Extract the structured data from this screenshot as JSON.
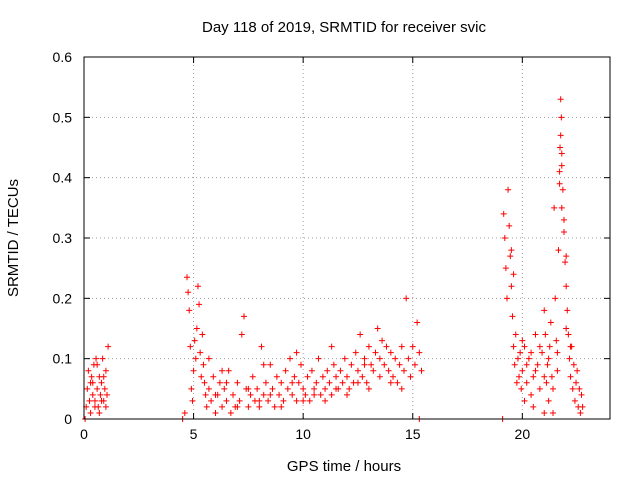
{
  "chart_data": {
    "type": "scatter",
    "title": "Day 118 of 2019, SRMTID for receiver svic",
    "xlabel": "GPS time / hours",
    "ylabel": "SRMTID / TECUs",
    "xlim": [
      0,
      24
    ],
    "ylim": [
      0,
      0.6
    ],
    "x_ticks": [
      0,
      5,
      10,
      15,
      20
    ],
    "x_tick_labels": [
      "0",
      "5",
      "10",
      "15",
      "20"
    ],
    "y_ticks": [
      0,
      0.1,
      0.2,
      0.3,
      0.4,
      0.5,
      0.6
    ],
    "y_tick_labels": [
      "0",
      "0.1",
      "0.2",
      "0.3",
      "0.4",
      "0.5",
      "0.6"
    ],
    "grid": true,
    "marker": "+",
    "color": "#ff0000",
    "series": [
      {
        "name": "SRMTID",
        "points": [
          [
            0.05,
            0.0
          ],
          [
            0.1,
            0.02
          ],
          [
            0.15,
            0.05
          ],
          [
            0.2,
            0.08
          ],
          [
            0.25,
            0.03
          ],
          [
            0.3,
            0.06
          ],
          [
            0.35,
            0.07
          ],
          [
            0.4,
            0.04
          ],
          [
            0.45,
            0.09
          ],
          [
            0.5,
            0.03
          ],
          [
            0.55,
            0.1
          ],
          [
            0.6,
            0.05
          ],
          [
            0.65,
            0.02
          ],
          [
            0.7,
            0.07
          ],
          [
            0.75,
            0.04
          ],
          [
            0.8,
            0.06
          ],
          [
            0.85,
            0.1
          ],
          [
            0.9,
            0.03
          ],
          [
            0.95,
            0.05
          ],
          [
            1.0,
            0.08
          ],
          [
            1.05,
            0.04
          ],
          [
            1.1,
            0.12
          ],
          [
            0.5,
            0.02
          ],
          [
            0.6,
            0.09
          ],
          [
            0.7,
            0.01
          ],
          [
            0.8,
            0.03
          ],
          [
            0.9,
            0.07
          ],
          [
            1.0,
            0.02
          ],
          [
            0.3,
            0.01
          ],
          [
            0.4,
            0.06
          ],
          [
            4.5,
            0.0
          ],
          [
            4.6,
            0.01
          ],
          [
            4.7,
            0.235
          ],
          [
            4.75,
            0.21
          ],
          [
            4.8,
            0.18
          ],
          [
            4.85,
            0.12
          ],
          [
            4.9,
            0.05
          ],
          [
            4.95,
            0.03
          ],
          [
            5.0,
            0.08
          ],
          [
            5.05,
            0.13
          ],
          [
            5.1,
            0.1
          ],
          [
            5.15,
            0.15
          ],
          [
            5.2,
            0.22
          ],
          [
            5.25,
            0.19
          ],
          [
            5.3,
            0.11
          ],
          [
            5.35,
            0.07
          ],
          [
            5.4,
            0.14
          ],
          [
            5.45,
            0.09
          ],
          [
            5.5,
            0.06
          ],
          [
            5.55,
            0.04
          ],
          [
            5.6,
            0.02
          ],
          [
            5.7,
            0.05
          ],
          [
            5.8,
            0.03
          ],
          [
            5.9,
            0.07
          ],
          [
            6.0,
            0.01
          ],
          [
            6.1,
            0.04
          ],
          [
            6.2,
            0.06
          ],
          [
            6.3,
            0.02
          ],
          [
            6.4,
            0.05
          ],
          [
            6.5,
            0.03
          ],
          [
            6.6,
            0.08
          ],
          [
            6.7,
            0.01
          ],
          [
            6.8,
            0.04
          ],
          [
            6.9,
            0.02
          ],
          [
            7.0,
            0.06
          ],
          [
            7.1,
            0.03
          ],
          [
            7.2,
            0.14
          ],
          [
            7.3,
            0.17
          ],
          [
            7.4,
            0.05
          ],
          [
            7.5,
            0.02
          ],
          [
            7.6,
            0.04
          ],
          [
            7.7,
            0.07
          ],
          [
            7.8,
            0.03
          ],
          [
            7.9,
            0.05
          ],
          [
            8.0,
            0.02
          ],
          [
            8.1,
            0.12
          ],
          [
            8.2,
            0.04
          ],
          [
            8.3,
            0.06
          ],
          [
            8.4,
            0.03
          ],
          [
            8.5,
            0.09
          ],
          [
            8.6,
            0.05
          ],
          [
            8.7,
            0.02
          ],
          [
            8.8,
            0.07
          ],
          [
            8.9,
            0.04
          ],
          [
            9.0,
            0.06
          ],
          [
            9.1,
            0.03
          ],
          [
            9.2,
            0.08
          ],
          [
            9.3,
            0.05
          ],
          [
            9.4,
            0.1
          ],
          [
            9.5,
            0.04
          ],
          [
            9.6,
            0.07
          ],
          [
            9.7,
            0.03
          ],
          [
            9.8,
            0.06
          ],
          [
            9.9,
            0.09
          ],
          [
            10.0,
            0.05
          ],
          [
            10.1,
            0.04
          ],
          [
            10.2,
            0.07
          ],
          [
            10.3,
            0.03
          ],
          [
            10.4,
            0.08
          ],
          [
            10.5,
            0.05
          ],
          [
            10.6,
            0.06
          ],
          [
            10.7,
            0.1
          ],
          [
            10.8,
            0.04
          ],
          [
            10.9,
            0.07
          ],
          [
            11.0,
            0.05
          ],
          [
            11.1,
            0.08
          ],
          [
            11.2,
            0.06
          ],
          [
            11.3,
            0.04
          ],
          [
            11.4,
            0.09
          ],
          [
            11.5,
            0.07
          ],
          [
            11.6,
            0.05
          ],
          [
            11.7,
            0.08
          ],
          [
            11.8,
            0.06
          ],
          [
            11.9,
            0.1
          ],
          [
            12.0,
            0.07
          ],
          [
            12.1,
            0.05
          ],
          [
            12.2,
            0.09
          ],
          [
            12.3,
            0.06
          ],
          [
            12.4,
            0.11
          ],
          [
            12.5,
            0.08
          ],
          [
            12.6,
            0.14
          ],
          [
            12.7,
            0.07
          ],
          [
            12.8,
            0.1
          ],
          [
            12.9,
            0.06
          ],
          [
            13.0,
            0.12
          ],
          [
            13.1,
            0.09
          ],
          [
            13.2,
            0.08
          ],
          [
            13.3,
            0.11
          ],
          [
            13.4,
            0.15
          ],
          [
            13.5,
            0.1
          ],
          [
            13.6,
            0.13
          ],
          [
            13.7,
            0.09
          ],
          [
            13.8,
            0.12
          ],
          [
            13.9,
            0.08
          ],
          [
            14.0,
            0.11
          ],
          [
            14.1,
            0.07
          ],
          [
            14.2,
            0.1
          ],
          [
            14.3,
            0.06
          ],
          [
            14.4,
            0.09
          ],
          [
            14.5,
            0.12
          ],
          [
            14.6,
            0.08
          ],
          [
            14.7,
            0.2
          ],
          [
            14.8,
            0.1
          ],
          [
            14.9,
            0.07
          ],
          [
            15.0,
            0.12
          ],
          [
            15.1,
            0.09
          ],
          [
            15.2,
            0.16
          ],
          [
            15.3,
            0.11
          ],
          [
            15.4,
            0.08
          ],
          [
            15.3,
            0.0
          ],
          [
            6.0,
            0.04
          ],
          [
            6.5,
            0.06
          ],
          [
            7.0,
            0.02
          ],
          [
            7.5,
            0.05
          ],
          [
            8.0,
            0.03
          ],
          [
            8.5,
            0.04
          ],
          [
            9.0,
            0.02
          ],
          [
            9.5,
            0.06
          ],
          [
            10.0,
            0.03
          ],
          [
            10.5,
            0.04
          ],
          [
            11.0,
            0.03
          ],
          [
            11.5,
            0.05
          ],
          [
            12.0,
            0.04
          ],
          [
            12.5,
            0.06
          ],
          [
            13.0,
            0.05
          ],
          [
            13.5,
            0.07
          ],
          [
            14.0,
            0.06
          ],
          [
            14.5,
            0.05
          ],
          [
            8.2,
            0.09
          ],
          [
            9.7,
            0.11
          ],
          [
            11.3,
            0.12
          ],
          [
            12.8,
            0.09
          ],
          [
            5.7,
            0.1
          ],
          [
            6.3,
            0.08
          ],
          [
            19.1,
            0.0
          ],
          [
            19.15,
            0.34
          ],
          [
            19.2,
            0.3
          ],
          [
            19.25,
            0.25
          ],
          [
            19.3,
            0.2
          ],
          [
            19.35,
            0.38
          ],
          [
            19.4,
            0.32
          ],
          [
            19.45,
            0.27
          ],
          [
            19.5,
            0.22
          ],
          [
            19.55,
            0.17
          ],
          [
            19.6,
            0.12
          ],
          [
            19.65,
            0.09
          ],
          [
            19.7,
            0.14
          ],
          [
            19.75,
            0.06
          ],
          [
            19.8,
            0.1
          ],
          [
            19.85,
            0.07
          ],
          [
            19.9,
            0.11
          ],
          [
            19.95,
            0.05
          ],
          [
            20.0,
            0.08
          ],
          [
            20.1,
            0.12
          ],
          [
            20.2,
            0.06
          ],
          [
            20.3,
            0.1
          ],
          [
            20.4,
            0.04
          ],
          [
            20.5,
            0.07
          ],
          [
            20.6,
            0.14
          ],
          [
            20.7,
            0.09
          ],
          [
            20.8,
            0.05
          ],
          [
            20.9,
            0.11
          ],
          [
            21.0,
            0.18
          ],
          [
            21.05,
            0.14
          ],
          [
            21.1,
            0.06
          ],
          [
            21.15,
            0.09
          ],
          [
            21.2,
            0.03
          ],
          [
            21.25,
            0.12
          ],
          [
            21.3,
            0.16
          ],
          [
            21.35,
            0.07
          ],
          [
            21.4,
            0.01
          ],
          [
            21.45,
            0.35
          ],
          [
            21.5,
            0.2
          ],
          [
            21.55,
            0.13
          ],
          [
            21.6,
            0.08
          ],
          [
            21.65,
            0.28
          ],
          [
            21.7,
            0.41
          ],
          [
            21.72,
            0.45
          ],
          [
            21.75,
            0.53
          ],
          [
            21.78,
            0.5
          ],
          [
            21.8,
            0.44
          ],
          [
            21.85,
            0.38
          ],
          [
            21.9,
            0.31
          ],
          [
            21.95,
            0.26
          ],
          [
            22.0,
            0.22
          ],
          [
            22.05,
            0.18
          ],
          [
            22.1,
            0.14
          ],
          [
            22.15,
            0.1
          ],
          [
            22.2,
            0.07
          ],
          [
            22.25,
            0.12
          ],
          [
            22.3,
            0.05
          ],
          [
            22.35,
            0.09
          ],
          [
            22.4,
            0.03
          ],
          [
            22.45,
            0.06
          ],
          [
            22.5,
            0.08
          ],
          [
            22.55,
            0.02
          ],
          [
            22.6,
            0.05
          ],
          [
            22.65,
            0.01
          ],
          [
            22.7,
            0.04
          ],
          [
            22.75,
            0.02
          ],
          [
            20.0,
            0.13
          ],
          [
            20.2,
            0.09
          ],
          [
            20.4,
            0.11
          ],
          [
            20.6,
            0.08
          ],
          [
            20.8,
            0.12
          ],
          [
            21.0,
            0.07
          ],
          [
            21.2,
            0.1
          ],
          [
            21.4,
            0.05
          ],
          [
            21.6,
            0.11
          ],
          [
            21.8,
            0.35
          ],
          [
            21.9,
            0.33
          ],
          [
            22.0,
            0.27
          ],
          [
            21.7,
            0.39
          ],
          [
            21.75,
            0.47
          ],
          [
            21.8,
            0.42
          ],
          [
            19.5,
            0.28
          ],
          [
            19.6,
            0.24
          ],
          [
            20.1,
            0.03
          ],
          [
            20.5,
            0.02
          ],
          [
            21.0,
            0.01
          ],
          [
            22.0,
            0.15
          ],
          [
            22.2,
            0.12
          ]
        ]
      }
    ]
  }
}
